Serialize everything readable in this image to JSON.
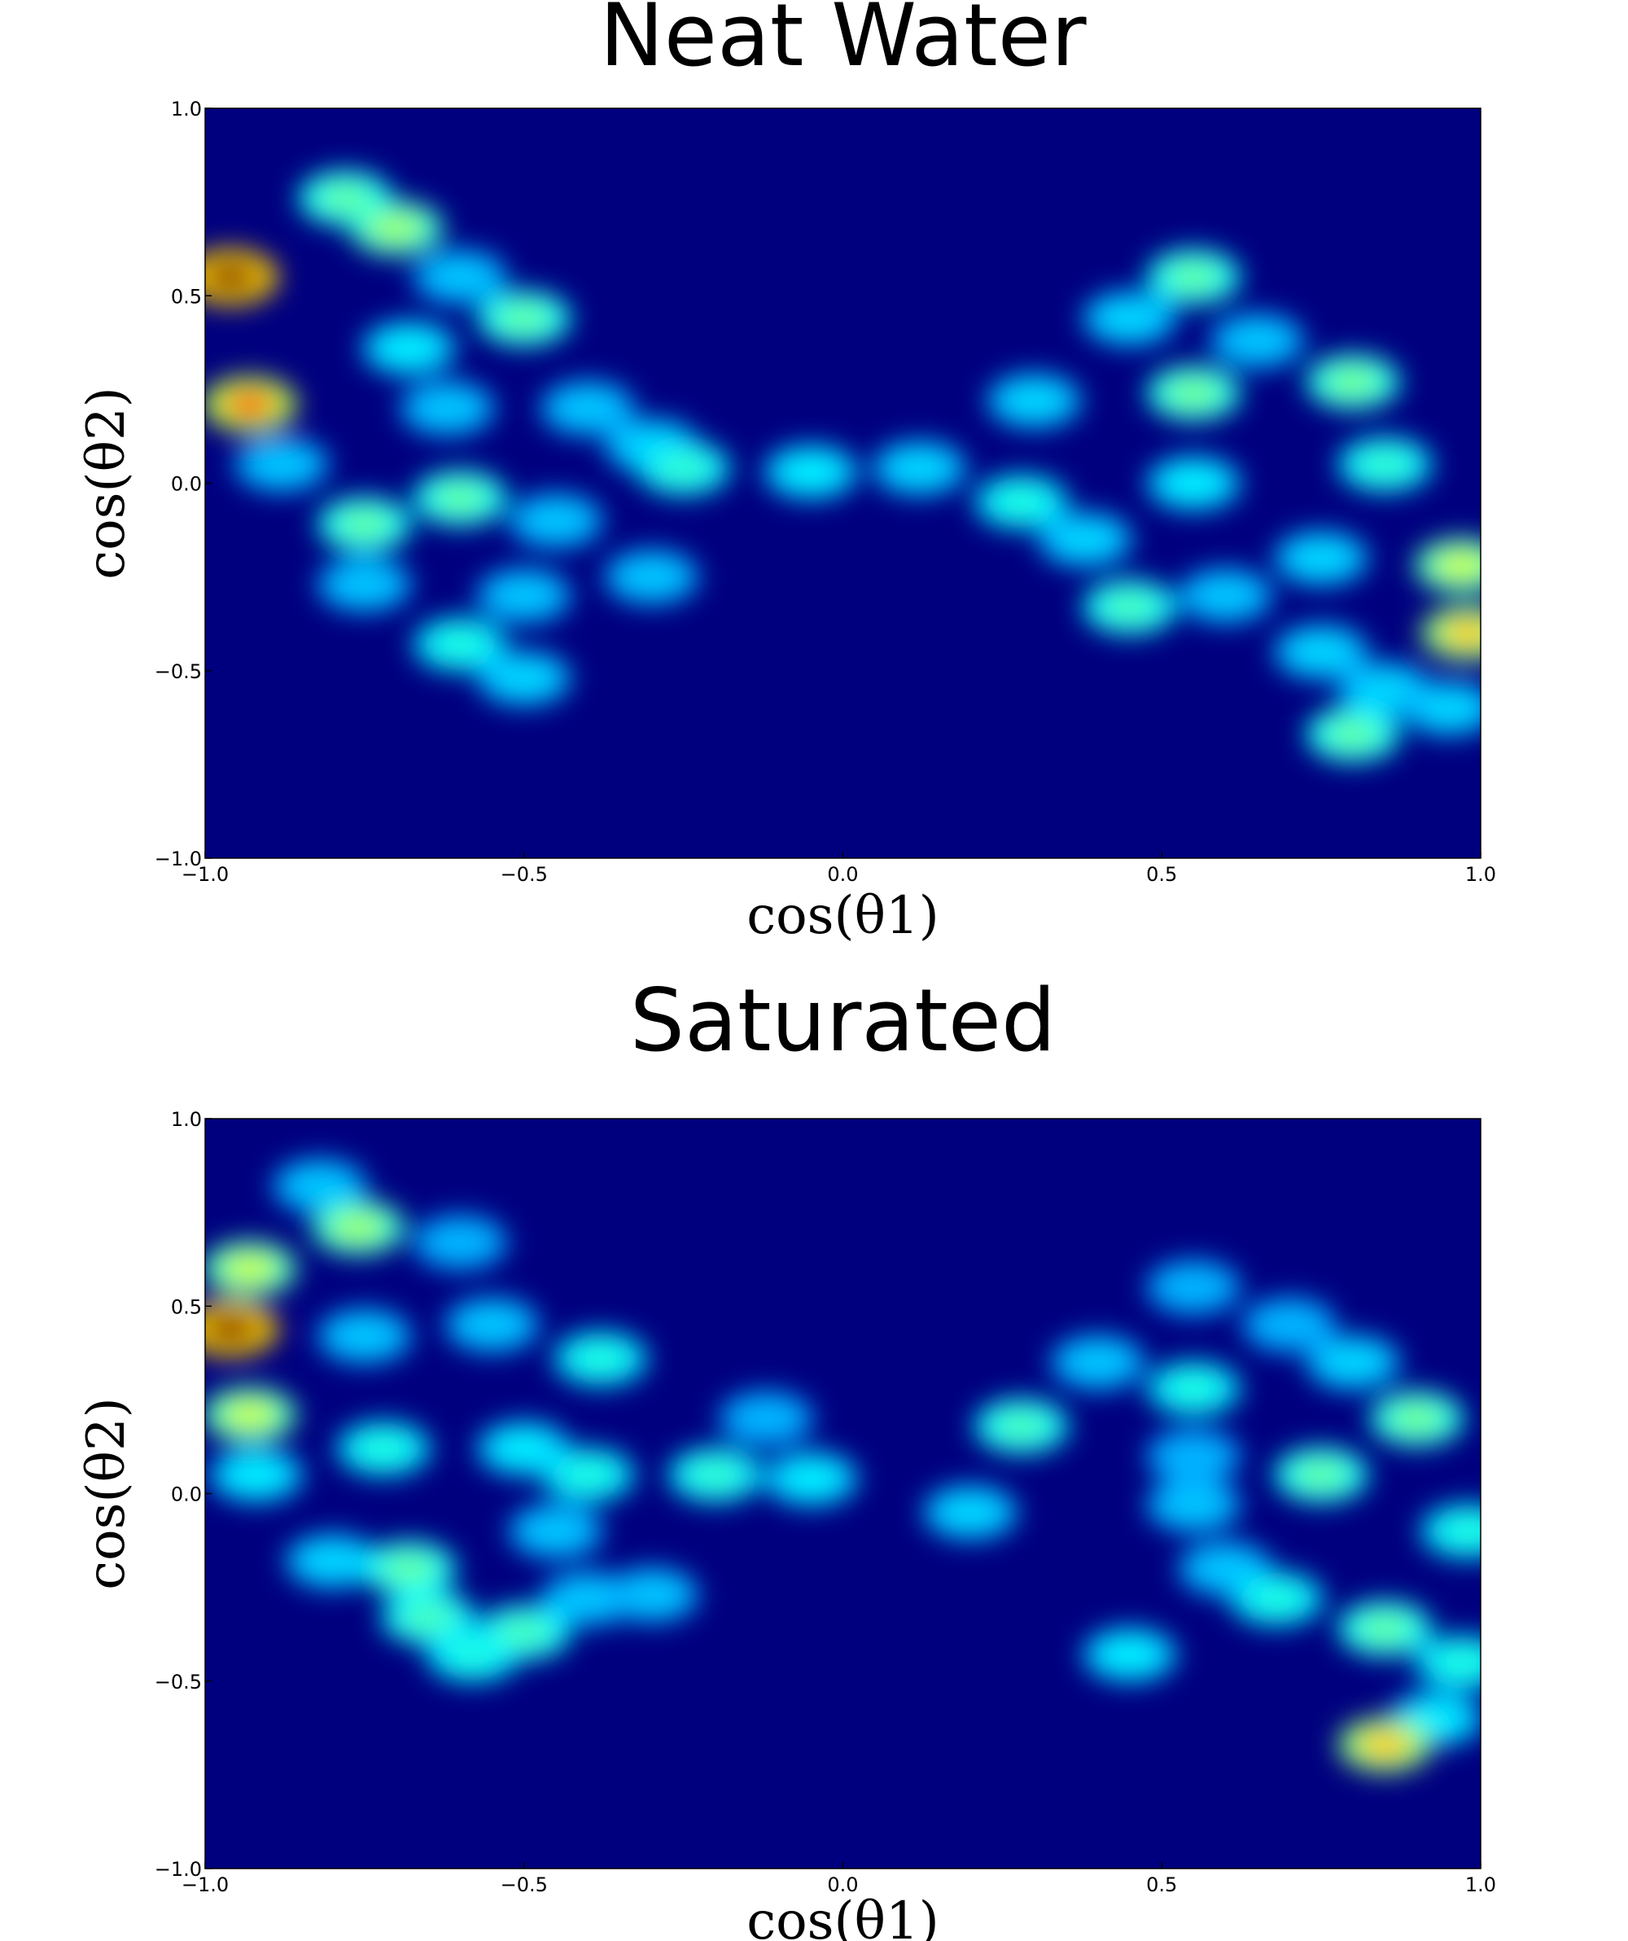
{
  "chart_data": [
    {
      "type": "heatmap",
      "title": "Neat Water",
      "xlabel": "cos(θ1)",
      "ylabel": "cos(θ2)",
      "xlim": [
        -1.0,
        1.0
      ],
      "ylim": [
        -1.0,
        1.0
      ],
      "xticks": [
        "−1.0",
        "−0.5",
        "0.0",
        "0.5",
        "1.0"
      ],
      "yticks": [
        "1.0",
        "0.5",
        "0.0",
        "−0.5",
        "−1.0"
      ],
      "colormap": "jet",
      "background_color": "#00007f",
      "hotspots": [
        {
          "x": -0.96,
          "y": 0.55,
          "intensity": 1.0
        },
        {
          "x": -0.93,
          "y": 0.21,
          "intensity": 0.75
        },
        {
          "x": -0.78,
          "y": 0.76,
          "intensity": 0.38
        },
        {
          "x": -0.7,
          "y": 0.68,
          "intensity": 0.45
        },
        {
          "x": -0.6,
          "y": 0.55,
          "intensity": 0.2
        },
        {
          "x": -0.5,
          "y": 0.44,
          "intensity": 0.38
        },
        {
          "x": -0.68,
          "y": 0.36,
          "intensity": 0.25
        },
        {
          "x": -0.62,
          "y": 0.2,
          "intensity": 0.2
        },
        {
          "x": -0.4,
          "y": 0.2,
          "intensity": 0.2
        },
        {
          "x": -0.3,
          "y": 0.1,
          "intensity": 0.22
        },
        {
          "x": -0.25,
          "y": 0.04,
          "intensity": 0.32
        },
        {
          "x": -0.05,
          "y": 0.03,
          "intensity": 0.25
        },
        {
          "x": -0.88,
          "y": 0.05,
          "intensity": 0.2
        },
        {
          "x": -0.75,
          "y": -0.11,
          "intensity": 0.38
        },
        {
          "x": -0.6,
          "y": -0.04,
          "intensity": 0.38
        },
        {
          "x": -0.45,
          "y": -0.1,
          "intensity": 0.2
        },
        {
          "x": -0.3,
          "y": -0.25,
          "intensity": 0.2
        },
        {
          "x": -0.5,
          "y": -0.3,
          "intensity": 0.2
        },
        {
          "x": -0.6,
          "y": -0.43,
          "intensity": 0.3
        },
        {
          "x": -0.5,
          "y": -0.52,
          "intensity": 0.22
        },
        {
          "x": -0.75,
          "y": -0.27,
          "intensity": 0.2
        },
        {
          "x": 0.12,
          "y": 0.04,
          "intensity": 0.22
        },
        {
          "x": 0.3,
          "y": 0.22,
          "intensity": 0.22
        },
        {
          "x": 0.55,
          "y": 0.55,
          "intensity": 0.38
        },
        {
          "x": 0.45,
          "y": 0.44,
          "intensity": 0.22
        },
        {
          "x": 0.55,
          "y": 0.24,
          "intensity": 0.4
        },
        {
          "x": 0.8,
          "y": 0.27,
          "intensity": 0.4
        },
        {
          "x": 0.65,
          "y": 0.38,
          "intensity": 0.2
        },
        {
          "x": 0.85,
          "y": 0.05,
          "intensity": 0.32
        },
        {
          "x": 0.55,
          "y": 0.0,
          "intensity": 0.25
        },
        {
          "x": 0.28,
          "y": -0.05,
          "intensity": 0.3
        },
        {
          "x": 0.38,
          "y": -0.15,
          "intensity": 0.22
        },
        {
          "x": 0.45,
          "y": -0.33,
          "intensity": 0.35
        },
        {
          "x": 0.6,
          "y": -0.3,
          "intensity": 0.2
        },
        {
          "x": 0.75,
          "y": -0.2,
          "intensity": 0.22
        },
        {
          "x": 0.97,
          "y": -0.22,
          "intensity": 0.5
        },
        {
          "x": 0.98,
          "y": -0.4,
          "intensity": 0.62
        },
        {
          "x": 0.75,
          "y": -0.45,
          "intensity": 0.22
        },
        {
          "x": 0.85,
          "y": -0.55,
          "intensity": 0.22
        },
        {
          "x": 0.8,
          "y": -0.67,
          "intensity": 0.38
        },
        {
          "x": 0.95,
          "y": -0.6,
          "intensity": 0.22
        }
      ]
    },
    {
      "type": "heatmap",
      "title": "Saturated",
      "xlabel": "cos(θ1)",
      "ylabel": "cos(θ2)",
      "xlim": [
        -1.0,
        1.0
      ],
      "ylim": [
        -1.0,
        1.0
      ],
      "xticks": [
        "−1.0",
        "−0.5",
        "0.0",
        "0.5",
        "1.0"
      ],
      "yticks": [
        "1.0",
        "0.5",
        "0.0",
        "−0.5",
        "−1.0"
      ],
      "colormap": "jet",
      "background_color": "#00007f",
      "hotspots": [
        {
          "x": -0.96,
          "y": 0.44,
          "intensity": 1.0
        },
        {
          "x": -0.93,
          "y": 0.6,
          "intensity": 0.5
        },
        {
          "x": -0.93,
          "y": 0.21,
          "intensity": 0.5
        },
        {
          "x": -0.76,
          "y": 0.71,
          "intensity": 0.45
        },
        {
          "x": -0.82,
          "y": 0.82,
          "intensity": 0.2
        },
        {
          "x": -0.6,
          "y": 0.67,
          "intensity": 0.18
        },
        {
          "x": -0.75,
          "y": 0.42,
          "intensity": 0.2
        },
        {
          "x": -0.55,
          "y": 0.45,
          "intensity": 0.2
        },
        {
          "x": -0.38,
          "y": 0.36,
          "intensity": 0.3
        },
        {
          "x": -0.72,
          "y": 0.12,
          "intensity": 0.3
        },
        {
          "x": -0.5,
          "y": 0.12,
          "intensity": 0.25
        },
        {
          "x": -0.4,
          "y": 0.05,
          "intensity": 0.3
        },
        {
          "x": -0.2,
          "y": 0.05,
          "intensity": 0.32
        },
        {
          "x": -0.05,
          "y": 0.04,
          "intensity": 0.25
        },
        {
          "x": -0.12,
          "y": 0.2,
          "intensity": 0.18
        },
        {
          "x": -0.92,
          "y": 0.05,
          "intensity": 0.25
        },
        {
          "x": -0.8,
          "y": -0.18,
          "intensity": 0.22
        },
        {
          "x": -0.68,
          "y": -0.2,
          "intensity": 0.38
        },
        {
          "x": -0.65,
          "y": -0.33,
          "intensity": 0.35
        },
        {
          "x": -0.5,
          "y": -0.37,
          "intensity": 0.35
        },
        {
          "x": -0.58,
          "y": -0.43,
          "intensity": 0.3
        },
        {
          "x": -0.45,
          "y": -0.1,
          "intensity": 0.2
        },
        {
          "x": -0.3,
          "y": -0.27,
          "intensity": 0.2
        },
        {
          "x": -0.4,
          "y": -0.28,
          "intensity": 0.2
        },
        {
          "x": 0.28,
          "y": 0.18,
          "intensity": 0.35
        },
        {
          "x": 0.4,
          "y": 0.35,
          "intensity": 0.2
        },
        {
          "x": 0.55,
          "y": 0.28,
          "intensity": 0.3
        },
        {
          "x": 0.55,
          "y": 0.55,
          "intensity": 0.18
        },
        {
          "x": 0.7,
          "y": 0.45,
          "intensity": 0.18
        },
        {
          "x": 0.8,
          "y": 0.35,
          "intensity": 0.22
        },
        {
          "x": 0.75,
          "y": 0.05,
          "intensity": 0.38
        },
        {
          "x": 0.55,
          "y": 0.1,
          "intensity": 0.18
        },
        {
          "x": 0.2,
          "y": -0.05,
          "intensity": 0.22
        },
        {
          "x": 0.55,
          "y": -0.03,
          "intensity": 0.2
        },
        {
          "x": 0.9,
          "y": 0.2,
          "intensity": 0.4
        },
        {
          "x": 0.98,
          "y": -0.1,
          "intensity": 0.3
        },
        {
          "x": 0.68,
          "y": -0.28,
          "intensity": 0.3
        },
        {
          "x": 0.85,
          "y": -0.36,
          "intensity": 0.38
        },
        {
          "x": 0.97,
          "y": -0.45,
          "intensity": 0.3
        },
        {
          "x": 0.45,
          "y": -0.43,
          "intensity": 0.25
        },
        {
          "x": 0.6,
          "y": -0.2,
          "intensity": 0.2
        },
        {
          "x": 0.85,
          "y": -0.67,
          "intensity": 0.62
        },
        {
          "x": 0.93,
          "y": -0.6,
          "intensity": 0.25
        }
      ]
    }
  ]
}
